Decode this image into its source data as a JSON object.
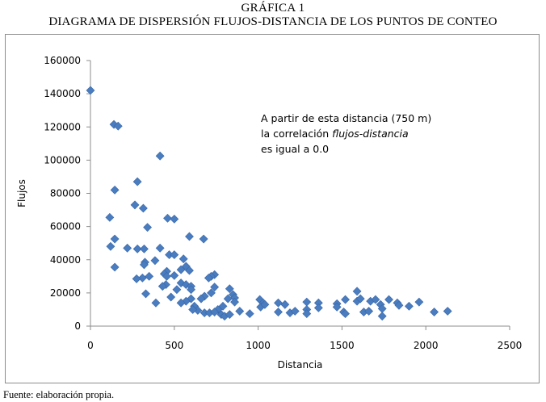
{
  "caption": {
    "number": "GRÁFICA 1",
    "title": "DIAGRAMA DE DISPERSIÓN FLUJOS-DISTANCIA DE LOS PUNTOS DE CONTEO"
  },
  "annotation": {
    "line1": "A partir de esta distancia (750 m)",
    "line2_prefix": "la correlación ",
    "line2_italic": "flujos-distancia",
    "line3": "es igual a 0.0"
  },
  "source": "Fuente: elaboración propia.",
  "colors": {
    "marker": "#4a7cc0",
    "marker_stroke": "#3a68a8",
    "axis": "#8c8c8c"
  },
  "chart_data": {
    "type": "scatter",
    "title": "",
    "xlabel": "Distancia",
    "ylabel": "Flujos",
    "xlim": [
      0,
      2500
    ],
    "ylim": [
      0,
      160000
    ],
    "xticks": [
      0,
      500,
      1000,
      1500,
      2000,
      2500
    ],
    "yticks": [
      0,
      20000,
      40000,
      60000,
      80000,
      100000,
      120000,
      140000,
      160000
    ],
    "grid": false,
    "legend": "none",
    "marker": "diamond",
    "points": [
      [
        0,
        142000
      ],
      [
        140,
        121500
      ],
      [
        165,
        120500
      ],
      [
        415,
        102500
      ],
      [
        280,
        87000
      ],
      [
        145,
        82000
      ],
      [
        265,
        73000
      ],
      [
        315,
        71000
      ],
      [
        115,
        65500
      ],
      [
        460,
        65000
      ],
      [
        500,
        64500
      ],
      [
        340,
        59500
      ],
      [
        590,
        54000
      ],
      [
        675,
        52500
      ],
      [
        145,
        52500
      ],
      [
        120,
        48000
      ],
      [
        220,
        47000
      ],
      [
        280,
        46500
      ],
      [
        320,
        46500
      ],
      [
        415,
        47000
      ],
      [
        470,
        43000
      ],
      [
        500,
        43000
      ],
      [
        555,
        40500
      ],
      [
        385,
        39500
      ],
      [
        325,
        38500
      ],
      [
        320,
        37000
      ],
      [
        145,
        35500
      ],
      [
        570,
        36000
      ],
      [
        540,
        34000
      ],
      [
        590,
        33500
      ],
      [
        455,
        33000
      ],
      [
        440,
        31500
      ],
      [
        455,
        30000
      ],
      [
        500,
        30500
      ],
      [
        350,
        30000
      ],
      [
        310,
        29000
      ],
      [
        275,
        28500
      ],
      [
        740,
        31000
      ],
      [
        720,
        30000
      ],
      [
        705,
        29000
      ],
      [
        540,
        26000
      ],
      [
        570,
        25000
      ],
      [
        600,
        24000
      ],
      [
        600,
        22000
      ],
      [
        450,
        25000
      ],
      [
        430,
        24000
      ],
      [
        515,
        22000
      ],
      [
        740,
        23500
      ],
      [
        720,
        20000
      ],
      [
        680,
        18000
      ],
      [
        660,
        16500
      ],
      [
        600,
        16500
      ],
      [
        570,
        15000
      ],
      [
        540,
        14000
      ],
      [
        480,
        17500
      ],
      [
        330,
        19500
      ],
      [
        390,
        14000
      ],
      [
        830,
        22500
      ],
      [
        850,
        19000
      ],
      [
        860,
        17000
      ],
      [
        820,
        16500
      ],
      [
        790,
        12000
      ],
      [
        760,
        10000
      ],
      [
        860,
        14500
      ],
      [
        620,
        12000
      ],
      [
        640,
        9500
      ],
      [
        610,
        10000
      ],
      [
        680,
        8000
      ],
      [
        710,
        8000
      ],
      [
        740,
        8500
      ],
      [
        780,
        7000
      ],
      [
        800,
        6000
      ],
      [
        830,
        7000
      ],
      [
        890,
        9000
      ],
      [
        950,
        7500
      ],
      [
        1010,
        16000
      ],
      [
        1030,
        14000
      ],
      [
        1015,
        11500
      ],
      [
        1040,
        13000
      ],
      [
        1120,
        14000
      ],
      [
        1160,
        13000
      ],
      [
        1120,
        8500
      ],
      [
        1190,
        8000
      ],
      [
        1220,
        9000
      ],
      [
        1290,
        14500
      ],
      [
        1290,
        10000
      ],
      [
        1290,
        7500
      ],
      [
        1360,
        14000
      ],
      [
        1360,
        11000
      ],
      [
        1470,
        13500
      ],
      [
        1470,
        11500
      ],
      [
        1510,
        8500
      ],
      [
        1520,
        7500
      ],
      [
        1520,
        16000
      ],
      [
        1590,
        21000
      ],
      [
        1590,
        15000
      ],
      [
        1610,
        16500
      ],
      [
        1630,
        8500
      ],
      [
        1660,
        9000
      ],
      [
        1670,
        15000
      ],
      [
        1700,
        16000
      ],
      [
        1730,
        13000
      ],
      [
        1740,
        10500
      ],
      [
        1740,
        6000
      ],
      [
        1780,
        16000
      ],
      [
        1830,
        14000
      ],
      [
        1840,
        12500
      ],
      [
        1900,
        12000
      ],
      [
        1960,
        14500
      ],
      [
        2050,
        8500
      ],
      [
        2130,
        9000
      ]
    ]
  }
}
